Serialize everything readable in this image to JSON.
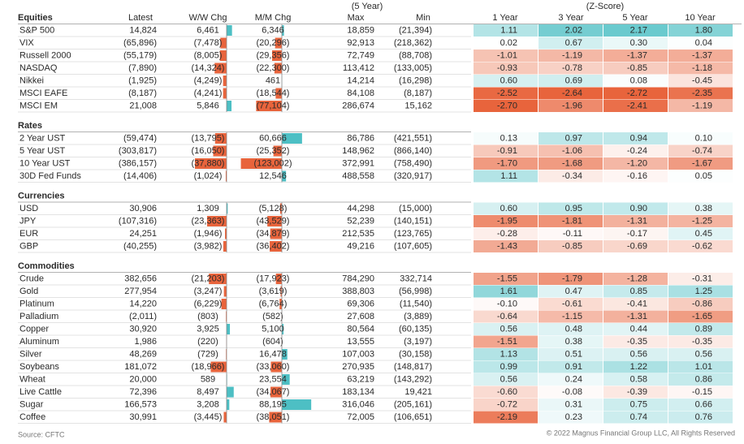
{
  "header": {
    "period": "(5 Year)",
    "zscore": "(Z-Score)",
    "columns": [
      "Latest",
      "W/W Chg",
      "M/M Chg",
      "Max",
      "Min",
      "1 Year",
      "3 Year",
      "5 Year",
      "10 Year"
    ]
  },
  "sections": [
    {
      "title": "Equities",
      "rows": [
        [
          "S&P 500",
          "14,824",
          {
            "value": 6461,
            "label": "6,461"
          },
          {
            "value": 6346,
            "label": "6,346"
          },
          "18,859",
          "(21,394)",
          1.11,
          2.02,
          2.17,
          {
            "value": 1.8,
            "label": "1.80"
          }
        ],
        [
          "VIX",
          "(65,896)",
          {
            "value": -7478,
            "label": "(7,478)"
          },
          {
            "value": -20296,
            "label": "(20,296)"
          },
          "92,913",
          "(218,362)",
          0.02,
          0.67,
          {
            "value": 0.3,
            "label": "0.30"
          },
          0.04
        ],
        [
          "Russell 2000",
          "(55,179)",
          {
            "value": -8005,
            "label": "(8,005)"
          },
          {
            "value": -29356,
            "label": "(29,356)"
          },
          "72,749",
          "(88,708)",
          -1.01,
          -1.19,
          -1.37,
          -1.37
        ],
        [
          "NASDAQ",
          "(7,890)",
          {
            "value": -14324,
            "label": "(14,324)"
          },
          {
            "value": -22300,
            "label": "(22,300)"
          },
          "113,412",
          "(133,005)",
          -0.93,
          -0.78,
          -0.85,
          -1.18
        ],
        [
          "Nikkei",
          "(1,925)",
          {
            "value": -4249,
            "label": "(4,249)"
          },
          461,
          "14,214",
          "(16,298)",
          {
            "value": 0.6,
            "label": "0.60"
          },
          0.69,
          0.08,
          -0.45
        ],
        [
          "MSCI EAFE",
          "(8,187)",
          {
            "value": -4241,
            "label": "(4,241)"
          },
          {
            "value": -18544,
            "label": "(18,544)"
          },
          "84,108",
          "(8,187)",
          -2.52,
          -2.64,
          -2.72,
          -2.35
        ],
        [
          "MSCI EM",
          "21,008",
          {
            "value": 5846,
            "label": "5,846"
          },
          {
            "value": -77104,
            "label": "(77,104)"
          },
          "286,674",
          "15,162",
          {
            "value": -2.7,
            "label": "-2.70"
          },
          -1.96,
          -2.41,
          -1.19
        ]
      ]
    },
    {
      "title": "Rates",
      "rows": [
        [
          "2 Year UST",
          "(59,474)",
          {
            "value": -13795,
            "label": "(13,795)"
          },
          {
            "value": 60666,
            "label": "60,666"
          },
          "86,786",
          "(421,551)",
          0.13,
          0.97,
          0.94,
          {
            "value": 0.1,
            "label": "0.10"
          }
        ],
        [
          "5 Year UST",
          "(303,817)",
          {
            "value": -16050,
            "label": "(16,050)"
          },
          {
            "value": -25352,
            "label": "(25,352)"
          },
          "148,962",
          "(866,140)",
          -0.91,
          -1.06,
          -0.24,
          -0.74
        ],
        [
          "10 Year UST",
          "(386,157)",
          {
            "value": -37880,
            "label": "(37,880)"
          },
          {
            "value": -123002,
            "label": "(123,002)"
          },
          "372,991",
          "(758,490)",
          {
            "value": -1.7,
            "label": "-1.70"
          },
          -1.68,
          {
            "value": -1.2,
            "label": "-1.20"
          },
          -1.67
        ],
        [
          "30D Fed Funds",
          "(14,406)",
          {
            "value": -1024,
            "label": "(1,024)"
          },
          {
            "value": 12546,
            "label": "12,546"
          },
          "488,558",
          "(320,917)",
          1.11,
          -0.34,
          -0.16,
          0.05
        ]
      ]
    },
    {
      "title": "Currencies",
      "rows": [
        [
          "USD",
          "30,906",
          {
            "value": 1309,
            "label": "1,309"
          },
          {
            "value": -5128,
            "label": "(5,128)"
          },
          "44,298",
          "(15,000)",
          {
            "value": 0.6,
            "label": "0.60"
          },
          0.95,
          {
            "value": 0.9,
            "label": "0.90"
          },
          0.38
        ],
        [
          "JPY",
          "(107,316)",
          {
            "value": -23363,
            "label": "(23,363)"
          },
          {
            "value": -43529,
            "label": "(43,529)"
          },
          "52,239",
          "(140,151)",
          -1.95,
          -1.81,
          -1.31,
          -1.25
        ],
        [
          "EUR",
          "24,251",
          {
            "value": -1946,
            "label": "(1,946)"
          },
          {
            "value": -34879,
            "label": "(34,879)"
          },
          "212,535",
          "(123,765)",
          -0.28,
          -0.11,
          -0.17,
          0.45
        ],
        [
          "GBP",
          "(40,255)",
          {
            "value": -3982,
            "label": "(3,982)"
          },
          {
            "value": -36402,
            "label": "(36,402)"
          },
          "49,216",
          "(107,605)",
          -1.43,
          -0.85,
          -0.69,
          -0.62
        ]
      ]
    },
    {
      "title": "Commodities",
      "rows": [
        [
          "Crude",
          "382,656",
          {
            "value": -21203,
            "label": "(21,203)"
          },
          {
            "value": -17923,
            "label": "(17,923)"
          },
          "784,290",
          "332,714",
          -1.55,
          -1.79,
          -1.28,
          -0.31
        ],
        [
          "Gold",
          "277,954",
          {
            "value": -3247,
            "label": "(3,247)"
          },
          {
            "value": -3619,
            "label": "(3,619)"
          },
          "388,803",
          "(56,998)",
          1.61,
          0.47,
          0.85,
          1.25
        ],
        [
          "Platinum",
          "14,220",
          {
            "value": -6229,
            "label": "(6,229)"
          },
          {
            "value": -6764,
            "label": "(6,764)"
          },
          "69,306",
          "(11,540)",
          {
            "value": -0.1,
            "label": "-0.10"
          },
          -0.61,
          -0.41,
          -0.86
        ],
        [
          "Palladium",
          "(2,011)",
          {
            "value": -803,
            "label": "(803)"
          },
          {
            "value": -582,
            "label": "(582)"
          },
          "27,608",
          "(3,889)",
          -0.64,
          -1.15,
          -1.31,
          -1.65
        ],
        [
          "Copper",
          "30,920",
          {
            "value": 3925,
            "label": "3,925"
          },
          {
            "value": 5100,
            "label": "5,100"
          },
          "80,564",
          "(60,135)",
          0.56,
          0.48,
          0.44,
          0.89
        ],
        [
          "Aluminum",
          "1,986",
          {
            "value": -220,
            "label": "(220)"
          },
          {
            "value": -604,
            "label": "(604)"
          },
          "13,555",
          "(3,197)",
          -1.51,
          0.38,
          -0.35,
          -0.35
        ],
        [
          "Silver",
          "48,269",
          {
            "value": -729,
            "label": "(729)"
          },
          {
            "value": 16478,
            "label": "16,478"
          },
          "107,003",
          "(30,158)",
          1.13,
          0.51,
          0.56,
          0.56
        ],
        [
          "Soybeans",
          "181,072",
          {
            "value": -18966,
            "label": "(18,966)"
          },
          {
            "value": -33060,
            "label": "(33,060)"
          },
          "270,935",
          "(148,817)",
          0.99,
          0.91,
          1.22,
          1.01
        ],
        [
          "Wheat",
          "20,000",
          589,
          {
            "value": 23554,
            "label": "23,554"
          },
          "63,219",
          "(143,292)",
          0.56,
          0.24,
          0.58,
          0.86
        ],
        [
          "Live Cattle",
          "72,396",
          {
            "value": 8497,
            "label": "8,497"
          },
          {
            "value": -34067,
            "label": "(34,067)"
          },
          "183,134",
          "19,421",
          {
            "value": -0.6,
            "label": "-0.60"
          },
          -0.08,
          -0.39,
          -0.15
        ],
        [
          "Sugar",
          "166,573",
          {
            "value": 3208,
            "label": "3,208"
          },
          {
            "value": 88195,
            "label": "88,195"
          },
          "316,046",
          "(205,161)",
          -0.72,
          0.31,
          0.75,
          0.66
        ],
        [
          "Coffee",
          "30,991",
          {
            "value": -3445,
            "label": "(3,445)"
          },
          {
            "value": -38051,
            "label": "(38,051)"
          },
          "72,005",
          "(106,651)",
          -2.19,
          0.23,
          0.74,
          0.76
        ]
      ]
    }
  ],
  "footer": {
    "source": "Source: CFTC",
    "copyright": "© 2022 Magnus Financial Group LLC, All Rights Reserved"
  }
}
